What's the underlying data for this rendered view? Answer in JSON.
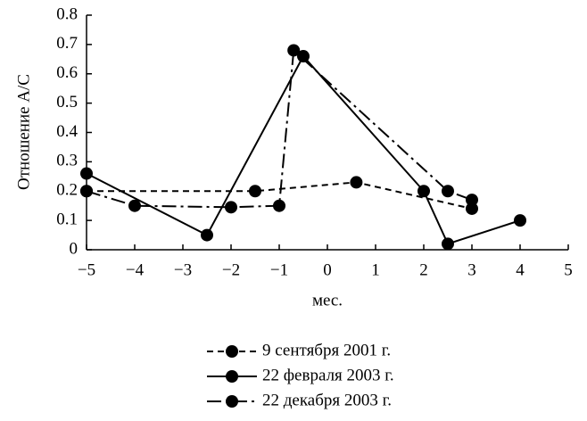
{
  "chart_data": {
    "type": "line",
    "xlabel": "мес.",
    "ylabel": "Отношение A/C",
    "xlim": [
      -5,
      5
    ],
    "xticks": [
      {
        "value": -5,
        "label": "−5"
      },
      {
        "value": -4,
        "label": "−4"
      },
      {
        "value": -3,
        "label": "−3"
      },
      {
        "value": -2,
        "label": "−2"
      },
      {
        "value": -1,
        "label": "−1"
      },
      0,
      1,
      2,
      3,
      4,
      5
    ],
    "ylim": [
      0,
      0.8
    ],
    "yticks": [
      0,
      0.1,
      0.2,
      0.3,
      0.4,
      0.5,
      0.6,
      0.7,
      0.8
    ],
    "series": [
      {
        "name": "9 сентября 2001 г.",
        "color": "#000000",
        "linestyle": "dashed",
        "x": [
          -5,
          -1.5,
          0.6,
          3
        ],
        "values": [
          0.2,
          0.2,
          0.23,
          0.14
        ]
      },
      {
        "name": "22 февраля 2003 г.",
        "color": "#000000",
        "linestyle": "solid",
        "x": [
          -5,
          -2.5,
          -0.5,
          2,
          2.5,
          4
        ],
        "values": [
          0.26,
          0.05,
          0.66,
          0.2,
          0.02,
          0.1
        ]
      },
      {
        "name": "22 декабря 2003 г.",
        "color": "#000000",
        "linestyle": "dashdot",
        "x": [
          -5,
          -4,
          -2,
          -1,
          -0.7,
          2.5,
          3
        ],
        "values": [
          0.2,
          0.15,
          0.145,
          0.15,
          0.68,
          0.2,
          0.17
        ]
      }
    ]
  }
}
